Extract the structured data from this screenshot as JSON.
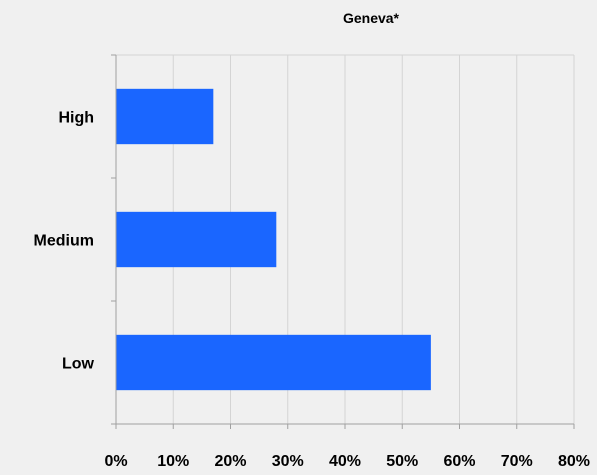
{
  "chart_data": {
    "type": "bar",
    "orientation": "horizontal",
    "title": "Geneva*",
    "xlabel": "",
    "ylabel": "",
    "categories": [
      "High",
      "Medium",
      "Low"
    ],
    "values": [
      17,
      28,
      55
    ],
    "xlim": [
      0,
      80
    ],
    "x_ticks": [
      "0%",
      "10%",
      "20%",
      "30%",
      "40%",
      "50%",
      "60%",
      "70%",
      "80%"
    ],
    "grid": true,
    "legend": "none"
  },
  "colors": {
    "bar": "#1a66ff",
    "background": "#f0f0f0",
    "gridline": "#d4d4d4",
    "axis": "#a0a0a0"
  }
}
